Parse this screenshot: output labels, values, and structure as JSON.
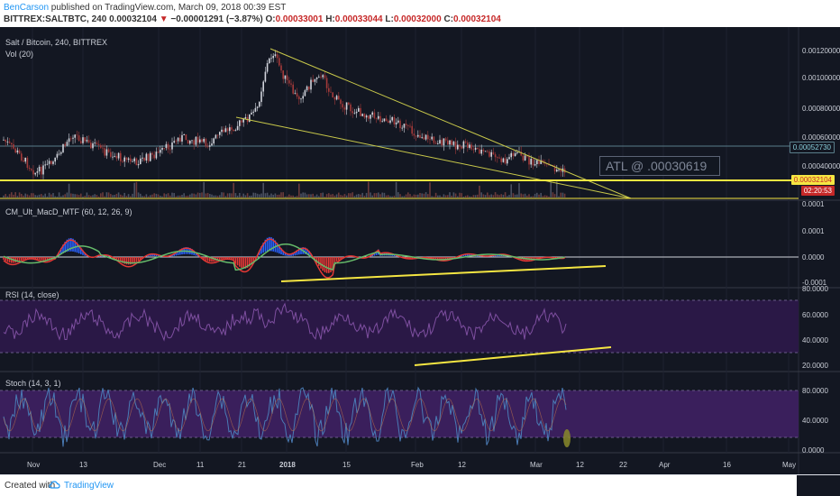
{
  "header": {
    "author": "BenCarson",
    "published_text": " published on TradingView.com, March 09, 2018 00:39 EST",
    "symbol": "BITTREX:SALTBTC, 240",
    "last_price": "0.00032104",
    "change_arrow": "▼",
    "change": "−0.00001291 (−3.87%)",
    "o_label": "O:",
    "o_value": "0.00033001",
    "h_label": "H:",
    "h_value": "0.00033044",
    "l_label": "L:",
    "l_value": "0.00032000",
    "c_label": "C:",
    "c_value": "0.00032104"
  },
  "panes": {
    "main": {
      "title": "Salt / Bitcoin, 240, BITTREX",
      "volume_label": "Vol (20)"
    },
    "macd": {
      "title": "CM_Ult_MacD_MTF (60, 12, 26, 9)"
    },
    "rsi": {
      "title": "RSI (14, close)"
    },
    "stoch": {
      "title": "Stoch (14, 3, 1)"
    }
  },
  "price_axis": {
    "main": [
      "0.00120000",
      "0.00100000",
      "0.00080000",
      "0.00060000",
      "0.00040000"
    ],
    "macd": [
      "0.0001",
      "0.0001",
      "0.0000",
      "-0.0001"
    ],
    "rsi": [
      "80.0000",
      "60.0000",
      "40.0000",
      "20.0000"
    ],
    "stoch": [
      "80.0000",
      "40.0000",
      "0.0000"
    ]
  },
  "badges": {
    "level": "0.00052730",
    "last": "0.00032104",
    "countdown": "02:20:53"
  },
  "annotation": {
    "atl_text": "ATL @ .00030619"
  },
  "time_axis": [
    "Nov",
    "13",
    "Dec",
    "11",
    "21",
    "2018",
    "15",
    "Feb",
    "12",
    "Mar",
    "12",
    "22",
    "Apr",
    "16",
    "May"
  ],
  "footer": {
    "created_with": "Created with",
    "brand": "TradingView"
  },
  "colors": {
    "background": "#131722",
    "up_candle": "#d1d4dc",
    "down_candle": "#a33a3a",
    "trendline": "#c8c84a",
    "support_line": "#f5e642",
    "rsi_fill": "#3a1f5c",
    "stoch_fill": "#3a1f5c"
  }
}
